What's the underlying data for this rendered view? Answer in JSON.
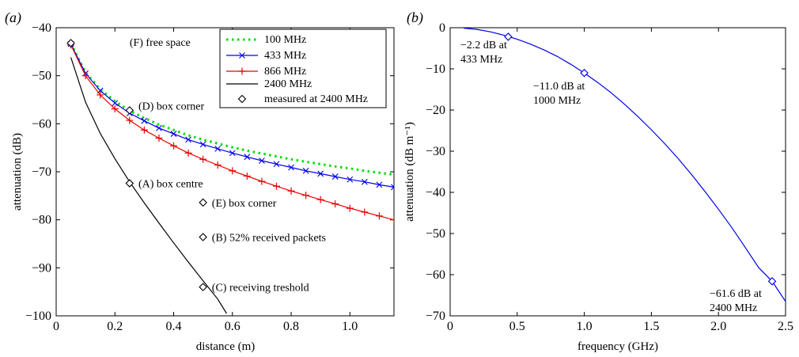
{
  "chart_data": [
    {
      "panel_label": "(a)",
      "type": "line",
      "xlabel": "distance (m)",
      "ylabel": "attenuation (dB)",
      "xlim": [
        0,
        1.15
      ],
      "ylim": [
        -100,
        -40
      ],
      "xticks": [
        0,
        0.2,
        0.4,
        0.6,
        0.8,
        1.0
      ],
      "xtick_labels": [
        "0",
        "0.2",
        "0.4",
        "0.6",
        "0.8",
        "1.0"
      ],
      "yticks": [
        -100,
        -90,
        -80,
        -70,
        -60,
        -50,
        -40
      ],
      "ytick_labels": [
        "−100",
        "−90",
        "−80",
        "−70",
        "−60",
        "−50",
        "−40"
      ],
      "legend_position": "top-right",
      "series": [
        {
          "name": "100 MHz",
          "color": "#00dd00",
          "style": "dotted",
          "marker": "none",
          "x": [
            0.05,
            0.1,
            0.15,
            0.2,
            0.25,
            0.3,
            0.35,
            0.4,
            0.45,
            0.5,
            0.55,
            0.6,
            0.65,
            0.7,
            0.75,
            0.8,
            0.85,
            0.9,
            0.95,
            1.0,
            1.05,
            1.1,
            1.15
          ],
          "y": [
            -43.3,
            -49.3,
            -52.8,
            -55.3,
            -57.3,
            -58.8,
            -60.2,
            -61.3,
            -62.4,
            -63.3,
            -64.1,
            -64.9,
            -65.6,
            -66.2,
            -66.8,
            -67.4,
            -67.9,
            -68.4,
            -68.9,
            -69.3,
            -69.8,
            -70.2,
            -70.6
          ]
        },
        {
          "name": "433 MHz",
          "color": "#0000ee",
          "style": "solid",
          "marker": "x",
          "x": [
            0.05,
            0.1,
            0.15,
            0.2,
            0.25,
            0.3,
            0.35,
            0.4,
            0.45,
            0.5,
            0.55,
            0.6,
            0.65,
            0.7,
            0.75,
            0.8,
            0.85,
            0.9,
            0.95,
            1.0,
            1.05,
            1.1,
            1.15
          ],
          "y": [
            -43.4,
            -49.5,
            -53.1,
            -55.7,
            -57.8,
            -59.4,
            -60.9,
            -62.1,
            -63.3,
            -64.3,
            -65.2,
            -66.1,
            -66.9,
            -67.7,
            -68.4,
            -69.1,
            -69.8,
            -70.4,
            -71.0,
            -71.6,
            -72.1,
            -72.7,
            -73.2
          ]
        },
        {
          "name": "866 MHz",
          "color": "#ee0000",
          "style": "solid",
          "marker": "+",
          "x": [
            0.05,
            0.1,
            0.15,
            0.2,
            0.25,
            0.3,
            0.35,
            0.4,
            0.45,
            0.5,
            0.55,
            0.6,
            0.65,
            0.7,
            0.75,
            0.8,
            0.85,
            0.9,
            0.95,
            1.0,
            1.05,
            1.1,
            1.15
          ],
          "y": [
            -43.6,
            -50.0,
            -54.0,
            -56.9,
            -59.3,
            -61.3,
            -63.0,
            -64.6,
            -66.1,
            -67.4,
            -68.6,
            -69.8,
            -70.9,
            -72.0,
            -73.0,
            -74.0,
            -74.9,
            -75.8,
            -76.7,
            -77.6,
            -78.4,
            -79.2,
            -80.0
          ]
        },
        {
          "name": "2400 MHz",
          "color": "#000000",
          "style": "solid",
          "marker": "none",
          "x": [
            0.05,
            0.1,
            0.15,
            0.2,
            0.25,
            0.3,
            0.35,
            0.4,
            0.45,
            0.5,
            0.55,
            0.58
          ],
          "y": [
            -46.2,
            -55.5,
            -62.0,
            -67.3,
            -72.1,
            -76.5,
            -80.7,
            -84.8,
            -88.8,
            -92.7,
            -96.5,
            -99.5
          ]
        },
        {
          "name": "measured at 2400 MHz",
          "color": "#000000",
          "style": "none",
          "marker": "diamond",
          "x": [
            0.05,
            0.25,
            0.25,
            0.5,
            0.5,
            0.5
          ],
          "y": [
            -43.2,
            -57.2,
            -72.4,
            -76.4,
            -83.6,
            -94.0
          ]
        }
      ],
      "annotations": [
        {
          "text": "(F) free space",
          "x": 0.25,
          "y": -43.0
        },
        {
          "text": "(D) box corner",
          "x": 0.28,
          "y": -56.2
        },
        {
          "text": "(A) box centre",
          "x": 0.28,
          "y": -72.4
        },
        {
          "text": "(E) box corner",
          "x": 0.53,
          "y": -76.4
        },
        {
          "text": "(B) 52% received packets",
          "x": 0.53,
          "y": -83.6
        },
        {
          "text": "(C) receiving treshold",
          "x": 0.53,
          "y": -94.0
        }
      ]
    },
    {
      "panel_label": "(b)",
      "type": "line",
      "xlabel": "frequency (GHz)",
      "ylabel": "attenuation (dB m⁻¹)",
      "xlim": [
        0,
        2.5
      ],
      "ylim": [
        -70,
        0
      ],
      "xticks": [
        0,
        0.5,
        1.0,
        1.5,
        2.0,
        2.5
      ],
      "xtick_labels": [
        "0",
        "0.5",
        "1.0",
        "1.5",
        "2.0",
        "2.5"
      ],
      "yticks": [
        -70,
        -60,
        -50,
        -40,
        -30,
        -20,
        -10,
        0
      ],
      "ytick_labels": [
        "−70",
        "−60",
        "−50",
        "−40",
        "−30",
        "−20",
        "−10",
        "0"
      ],
      "series": [
        {
          "color": "#0000ee",
          "style": "solid",
          "x": [
            0.1,
            0.2,
            0.3,
            0.4,
            0.5,
            0.6,
            0.7,
            0.8,
            0.9,
            1.0,
            1.1,
            1.2,
            1.3,
            1.4,
            1.5,
            1.6,
            1.7,
            1.8,
            1.9,
            2.0,
            2.1,
            2.2,
            2.3,
            2.4,
            2.5
          ],
          "y": [
            -0.1,
            -0.4,
            -1.0,
            -1.8,
            -2.8,
            -4.0,
            -5.4,
            -7.0,
            -8.9,
            -11.0,
            -13.3,
            -15.8,
            -18.6,
            -21.6,
            -24.8,
            -28.2,
            -31.8,
            -35.7,
            -39.8,
            -44.1,
            -48.6,
            -53.4,
            -58.3,
            -61.6,
            -66.5
          ]
        }
      ],
      "points": [
        {
          "x": 0.433,
          "y": -2.2
        },
        {
          "x": 1.0,
          "y": -11.0
        },
        {
          "x": 2.4,
          "y": -61.6
        }
      ],
      "annotations": [
        {
          "lines": [
            "−2.2 dB at",
            "433 MHz"
          ]
        },
        {
          "lines": [
            "−11.0 dB at",
            "1000 MHz"
          ]
        },
        {
          "lines": [
            "−61.6 dB at",
            "2400 MHz"
          ]
        }
      ]
    }
  ]
}
